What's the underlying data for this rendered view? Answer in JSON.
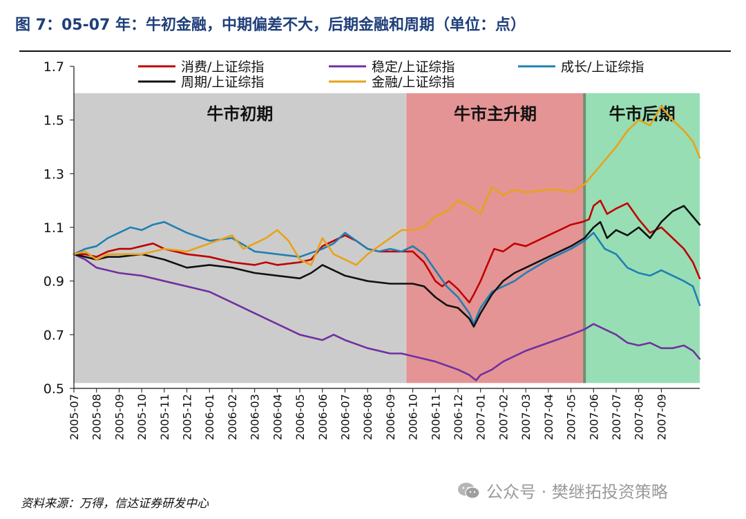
{
  "figure_title": "图 7：05-07 年：牛初金融，中期偏差不大，后期金融和周期（单位：点）",
  "source_note": "资料来源：万得，信达证券研发中心",
  "watermark": "公众号 · 樊继拓投资策略",
  "watermark_icon": "wechat-icon",
  "colors": {
    "title": "#1f3f7a",
    "phase_early": "#cccccc",
    "phase_main": "#e49494",
    "phase_late": "#97deb4"
  },
  "chart_data": {
    "type": "line",
    "title": "",
    "xlabel": "",
    "ylabel": "",
    "ylim": [
      0.5,
      1.7
    ],
    "yticks": [
      "1.7",
      "1.5",
      "1.3",
      "1.1",
      "0.9",
      "0.7",
      "0.5"
    ],
    "ytick_values": [
      1.7,
      1.5,
      1.3,
      1.1,
      0.9,
      0.7,
      0.5
    ],
    "categories": [
      "2005-07",
      "2005-08",
      "2005-09",
      "2005-10",
      "2005-11",
      "2005-12",
      "2006-01",
      "2006-02",
      "2006-03",
      "2006-04",
      "2006-05",
      "2006-06",
      "2006-07",
      "2006-08",
      "2006-09",
      "2006-10",
      "2006-11",
      "2006-12",
      "2007-01",
      "2007-02",
      "2007-03",
      "2007-04",
      "2007-05",
      "2007-06",
      "2007-07",
      "2007-08",
      "2007-09"
    ],
    "x_end": 27.7,
    "grid": false,
    "legend_position": "top",
    "phases": [
      {
        "label": "牛市初期",
        "start": 0,
        "end": 14.7,
        "color": "#cccccc"
      },
      {
        "label": "牛市主升期",
        "start": 14.7,
        "end": 22.6,
        "color": "#e49494"
      },
      {
        "label": "牛市后期",
        "start": 22.6,
        "end": 27.7,
        "color": "#97deb4"
      }
    ],
    "series": [
      {
        "name": "消费/上证综指",
        "color": "#c00000",
        "x": [
          0,
          0.5,
          1,
          1.5,
          2,
          2.5,
          3,
          3.5,
          4,
          5,
          6,
          7,
          8,
          8.5,
          9,
          10,
          10.5,
          11,
          11.5,
          12,
          12.5,
          13,
          13.5,
          14,
          14.5,
          15,
          15.5,
          16,
          16.3,
          16.6,
          17,
          17.5,
          17.7,
          18,
          18.3,
          18.6,
          19,
          19.5,
          20,
          20.5,
          21,
          21.5,
          22,
          22.5,
          22.8,
          23,
          23.3,
          23.6,
          24,
          24.5,
          25,
          25.5,
          26,
          26.5,
          27,
          27.4,
          27.7
        ],
        "y": [
          1.0,
          1.0,
          0.99,
          1.01,
          1.02,
          1.02,
          1.03,
          1.04,
          1.02,
          1.0,
          0.99,
          0.97,
          0.96,
          0.97,
          0.96,
          0.97,
          0.98,
          1.03,
          1.05,
          1.07,
          1.05,
          1.02,
          1.01,
          1.01,
          1.01,
          1.01,
          0.97,
          0.9,
          0.88,
          0.9,
          0.87,
          0.82,
          0.85,
          0.9,
          0.96,
          1.02,
          1.01,
          1.04,
          1.03,
          1.05,
          1.07,
          1.09,
          1.11,
          1.12,
          1.13,
          1.18,
          1.2,
          1.15,
          1.17,
          1.19,
          1.13,
          1.08,
          1.1,
          1.06,
          1.02,
          0.97,
          0.91
        ]
      },
      {
        "name": "稳定/上证综指",
        "color": "#7030a0",
        "x": [
          0,
          0.5,
          1,
          1.5,
          2,
          3,
          4,
          5,
          6,
          7,
          8,
          9,
          10,
          11,
          11.5,
          12,
          13,
          14,
          14.5,
          15,
          16,
          17,
          17.5,
          17.8,
          18,
          18.5,
          19,
          20,
          21,
          22,
          22.6,
          23,
          23.5,
          24,
          24.5,
          25,
          25.5,
          26,
          26.5,
          27,
          27.4,
          27.7
        ],
        "y": [
          1.0,
          0.98,
          0.95,
          0.94,
          0.93,
          0.92,
          0.9,
          0.88,
          0.86,
          0.82,
          0.78,
          0.74,
          0.7,
          0.68,
          0.7,
          0.68,
          0.65,
          0.63,
          0.63,
          0.62,
          0.6,
          0.57,
          0.55,
          0.53,
          0.55,
          0.57,
          0.6,
          0.64,
          0.67,
          0.7,
          0.72,
          0.74,
          0.72,
          0.7,
          0.67,
          0.66,
          0.67,
          0.65,
          0.65,
          0.66,
          0.64,
          0.61
        ]
      },
      {
        "name": "成长/上证综指",
        "color": "#1f7fb4",
        "x": [
          0,
          0.5,
          1,
          1.5,
          2,
          2.5,
          3,
          3.5,
          4,
          5,
          6,
          7,
          8,
          9,
          10,
          11,
          11.5,
          12,
          12.5,
          13,
          13.5,
          14,
          14.5,
          15,
          15.5,
          16,
          16.5,
          17,
          17.5,
          17.7,
          18,
          18.5,
          19,
          19.5,
          20,
          21,
          22,
          22.6,
          23,
          23.5,
          24,
          24.5,
          25,
          25.5,
          26,
          26.5,
          27,
          27.4,
          27.7
        ],
        "y": [
          1.0,
          1.02,
          1.03,
          1.06,
          1.08,
          1.1,
          1.09,
          1.11,
          1.12,
          1.08,
          1.05,
          1.06,
          1.01,
          1.0,
          0.99,
          1.02,
          1.04,
          1.08,
          1.05,
          1.02,
          1.01,
          1.02,
          1.01,
          1.03,
          1.0,
          0.94,
          0.88,
          0.84,
          0.78,
          0.74,
          0.8,
          0.86,
          0.88,
          0.9,
          0.93,
          0.98,
          1.02,
          1.05,
          1.08,
          1.02,
          1.0,
          0.95,
          0.93,
          0.92,
          0.94,
          0.92,
          0.9,
          0.88,
          0.81
        ]
      },
      {
        "name": "周期/上证综指",
        "color": "#111111",
        "x": [
          0,
          0.5,
          1,
          1.5,
          2,
          3,
          4,
          5,
          6,
          7,
          8,
          9,
          10,
          10.5,
          11,
          12,
          13,
          14,
          14.5,
          15,
          15.5,
          16,
          16.5,
          17,
          17.5,
          17.7,
          18,
          18.5,
          19,
          19.5,
          20,
          21,
          22,
          22.6,
          23,
          23.3,
          23.6,
          24,
          24.5,
          25,
          25.5,
          26,
          26.5,
          27,
          27.4,
          27.7
        ],
        "y": [
          1.0,
          0.99,
          0.98,
          0.99,
          0.99,
          1.0,
          0.98,
          0.95,
          0.96,
          0.95,
          0.93,
          0.92,
          0.91,
          0.93,
          0.96,
          0.92,
          0.9,
          0.89,
          0.89,
          0.89,
          0.88,
          0.84,
          0.81,
          0.8,
          0.76,
          0.73,
          0.78,
          0.85,
          0.9,
          0.93,
          0.95,
          0.99,
          1.03,
          1.06,
          1.1,
          1.12,
          1.06,
          1.09,
          1.07,
          1.1,
          1.06,
          1.12,
          1.16,
          1.18,
          1.14,
          1.11
        ]
      },
      {
        "name": "金融/上证综指",
        "color": "#e8a218",
        "x": [
          0,
          0.5,
          1,
          1.5,
          2,
          3,
          4,
          5,
          6,
          7,
          7.5,
          8,
          8.5,
          9,
          9.5,
          10,
          10.5,
          11,
          11.5,
          12,
          12.5,
          13,
          14,
          14.5,
          15,
          15.5,
          16,
          16.5,
          17,
          17.5,
          18,
          18.5,
          19,
          19.5,
          20,
          21,
          21.5,
          22,
          22.6,
          23,
          23.5,
          24,
          24.5,
          25,
          25.5,
          26,
          26.5,
          27,
          27.4,
          27.7
        ],
        "y": [
          1.0,
          1.01,
          0.98,
          1.0,
          1.0,
          1.0,
          1.02,
          1.01,
          1.04,
          1.07,
          1.02,
          1.04,
          1.06,
          1.09,
          1.05,
          0.98,
          0.96,
          1.06,
          1.0,
          0.98,
          0.96,
          1.0,
          1.06,
          1.09,
          1.09,
          1.1,
          1.14,
          1.16,
          1.2,
          1.18,
          1.15,
          1.25,
          1.22,
          1.24,
          1.23,
          1.24,
          1.24,
          1.23,
          1.26,
          1.3,
          1.35,
          1.4,
          1.46,
          1.5,
          1.48,
          1.55,
          1.5,
          1.46,
          1.42,
          1.36
        ]
      }
    ]
  }
}
